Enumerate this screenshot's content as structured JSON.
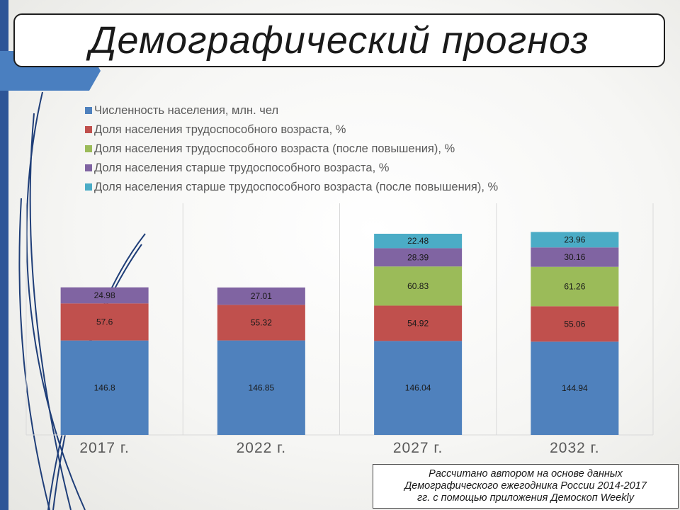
{
  "slide": {
    "title": "Демографический прогноз",
    "source_lines": [
      "Рассчитано автором на основе данных",
      "Демографического ежегодника России 2014-2017",
      "гг. с помощью приложения Демоскоп Weekly"
    ]
  },
  "chart_data": {
    "type": "bar",
    "stacked": true,
    "categories": [
      "2017 г.",
      "2022 г.",
      "2027 г.",
      "2032 г."
    ],
    "series": [
      {
        "name": "Численность населения, млн. чел",
        "color": "#4f81bd",
        "values": [
          146.8,
          146.85,
          146.04,
          144.94
        ]
      },
      {
        "name": "Доля населения трудоспособного возраста, %",
        "color": "#c0504d",
        "values": [
          57.6,
          55.32,
          54.92,
          55.06
        ]
      },
      {
        "name": "Доля населения трудоспособного возраста (после повышения), %",
        "color": "#9bbb59",
        "values": [
          null,
          null,
          60.83,
          61.26
        ]
      },
      {
        "name": "Доля населения старше трудоспособного возраста, %",
        "color": "#8064a2",
        "values": [
          24.98,
          27.01,
          28.39,
          30.16
        ]
      },
      {
        "name": "Доля населения старше трудоспособного возраста (после повышения), %",
        "color": "#4bacc6",
        "values": [
          null,
          null,
          22.48,
          23.96
        ]
      }
    ],
    "legend_position": "top-left",
    "gridlines": "vertical",
    "ylim": [
      0,
      360
    ],
    "data_labels": true
  }
}
